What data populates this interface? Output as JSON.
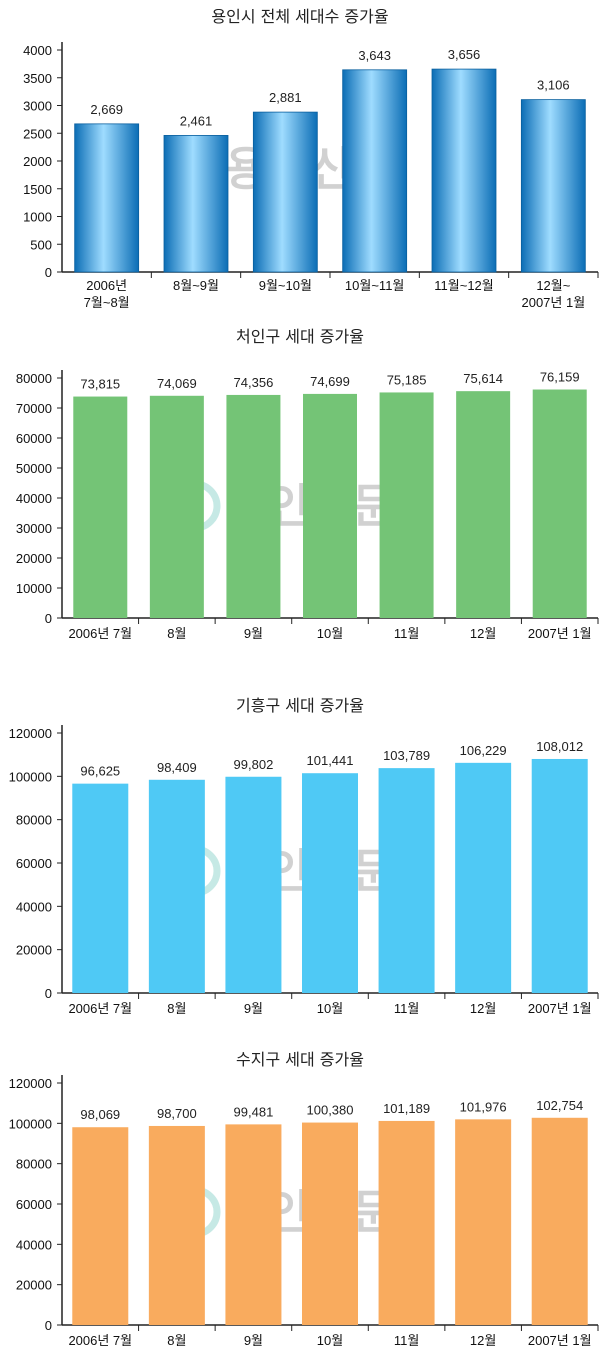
{
  "watermark": {
    "text": "용인신문"
  },
  "chart_data": [
    {
      "type": "bar",
      "title": "용인시 전체 세대수 증가율",
      "categories": [
        "2006년\n7월~8월",
        "8월~9월",
        "9월~10월",
        "10월~11월",
        "11월~12월",
        "12월~\n2007년 1월"
      ],
      "values": [
        2669,
        2461,
        2881,
        3643,
        3656,
        3106
      ],
      "data_labels": [
        "2,669",
        "2,461",
        "2,881",
        "3,643",
        "3,656",
        "3,106"
      ],
      "yticks": [
        "0",
        "500",
        "1000",
        "1500",
        "2000",
        "2500",
        "3000",
        "3500",
        "4000"
      ],
      "ylim": [
        0,
        4000
      ],
      "color": "#1f8fd6",
      "gradient": true,
      "grid": false
    },
    {
      "type": "bar",
      "title": "처인구 세대 증가율",
      "categories": [
        "2006년 7월",
        "8월",
        "9월",
        "10월",
        "11월",
        "12월",
        "2007년 1월"
      ],
      "values": [
        73815,
        74069,
        74356,
        74699,
        75185,
        75614,
        76159
      ],
      "data_labels": [
        "73,815",
        "74,069",
        "74,356",
        "74,699",
        "75,185",
        "75,614",
        "76,159"
      ],
      "yticks": [
        "0",
        "10000",
        "20000",
        "30000",
        "40000",
        "50000",
        "60000",
        "70000",
        "80000"
      ],
      "ylim": [
        0,
        80000
      ],
      "color": "#74c476",
      "gradient": false,
      "grid": false
    },
    {
      "type": "bar",
      "title": "기흥구 세대 증가율",
      "categories": [
        "2006년 7월",
        "8월",
        "9월",
        "10월",
        "11월",
        "12월",
        "2007년 1월"
      ],
      "values": [
        96625,
        98409,
        99802,
        101441,
        103789,
        106229,
        108012
      ],
      "data_labels": [
        "96,625",
        "98,409",
        "99,802",
        "101,441",
        "103,789",
        "106,229",
        "108,012"
      ],
      "yticks": [
        "0",
        "20000",
        "40000",
        "60000",
        "80000",
        "100000",
        "120000"
      ],
      "ylim": [
        0,
        120000
      ],
      "color": "#4fc9f5",
      "gradient": false,
      "grid": false
    },
    {
      "type": "bar",
      "title": "수지구 세대 증가율",
      "categories": [
        "2006년 7월",
        "8월",
        "9월",
        "10월",
        "11월",
        "12월",
        "2007년 1월"
      ],
      "values": [
        98069,
        98700,
        99481,
        100380,
        101189,
        101976,
        102754
      ],
      "data_labels": [
        "98,069",
        "98,700",
        "99,481",
        "100,380",
        "101,189",
        "101,976",
        "102,754"
      ],
      "yticks": [
        "0",
        "20000",
        "40000",
        "60000",
        "80000",
        "100000",
        "120000"
      ],
      "ylim": [
        0,
        120000
      ],
      "color": "#f9ab5e",
      "gradient": false,
      "grid": false
    }
  ]
}
